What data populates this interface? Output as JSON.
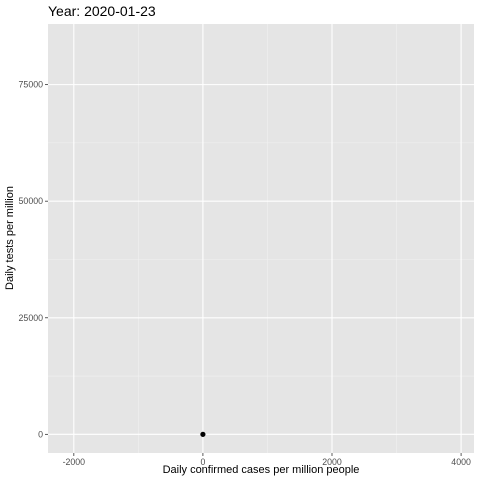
{
  "chart_data": {
    "type": "scatter",
    "title": "Year: 2020-01-23",
    "xlabel": "Daily confirmed cases per million people",
    "ylabel": "Daily tests per million",
    "xlim": [
      -2400,
      4200
    ],
    "ylim": [
      -4000,
      88000
    ],
    "x_ticks": [
      -2000,
      0,
      2000,
      4000
    ],
    "y_ticks": [
      0,
      25000,
      50000,
      75000
    ],
    "x_tick_labels": [
      "-2000",
      "0",
      "2000",
      "4000"
    ],
    "y_tick_labels": [
      "0",
      "25000",
      "50000",
      "75000"
    ],
    "grid": true,
    "points": [
      {
        "x": 0,
        "y": 0
      }
    ],
    "colors": {
      "panel_background": "#e5e5e5",
      "grid_major": "#ffffff",
      "grid_minor": "#f2f2f2",
      "point": "#000000",
      "tick": "#333333"
    }
  }
}
